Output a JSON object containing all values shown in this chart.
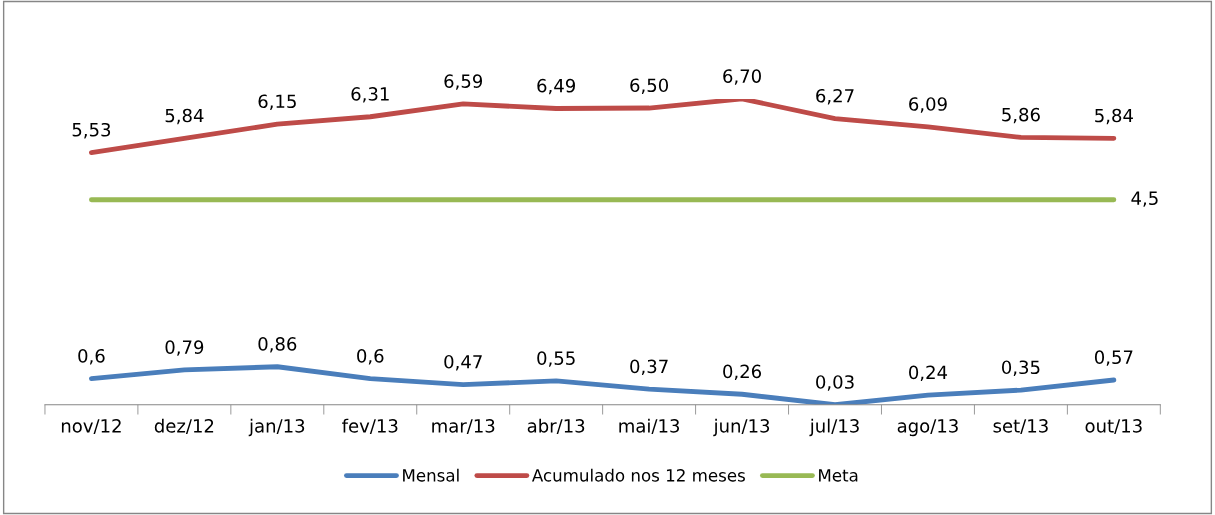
{
  "chart_data": {
    "type": "line",
    "categories": [
      "nov/12",
      "dez/12",
      "jan/13",
      "fev/13",
      "mar/13",
      "abr/13",
      "mai/13",
      "jun/13",
      "jul/13",
      "ago/13",
      "set/13",
      "out/13"
    ],
    "series": [
      {
        "name": "Mensal",
        "color": "#4a7ebb",
        "values": [
          0.6,
          0.79,
          0.86,
          0.6,
          0.47,
          0.55,
          0.37,
          0.26,
          0.03,
          0.24,
          0.35,
          0.57
        ],
        "value_labels": [
          "0,6",
          "0,79",
          "0,86",
          "0,6",
          "0,47",
          "0,55",
          "0,37",
          "0,26",
          "0,03",
          "0,24",
          "0,35",
          "0,57"
        ]
      },
      {
        "name": "Acumulado nos 12 meses",
        "color": "#be4b48",
        "values": [
          5.53,
          5.84,
          6.15,
          6.31,
          6.59,
          6.49,
          6.5,
          6.7,
          6.27,
          6.09,
          5.86,
          5.84
        ],
        "value_labels": [
          "5,53",
          "5,84",
          "6,15",
          "6,31",
          "6,59",
          "6,49",
          "6,50",
          "6,70",
          "6,27",
          "6,09",
          "5,86",
          "5,84"
        ]
      },
      {
        "name": "Meta",
        "color": "#98b954",
        "values": [
          4.5,
          4.5,
          4.5,
          4.5,
          4.5,
          4.5,
          4.5,
          4.5,
          4.5,
          4.5,
          4.5,
          4.5
        ],
        "value_labels": [
          null,
          null,
          null,
          null,
          null,
          null,
          null,
          null,
          null,
          null,
          null,
          "4,5"
        ]
      }
    ],
    "tick_labels": "x",
    "legend": "bottom",
    "grid": false,
    "marker": "none",
    "line_style": "solid"
  }
}
